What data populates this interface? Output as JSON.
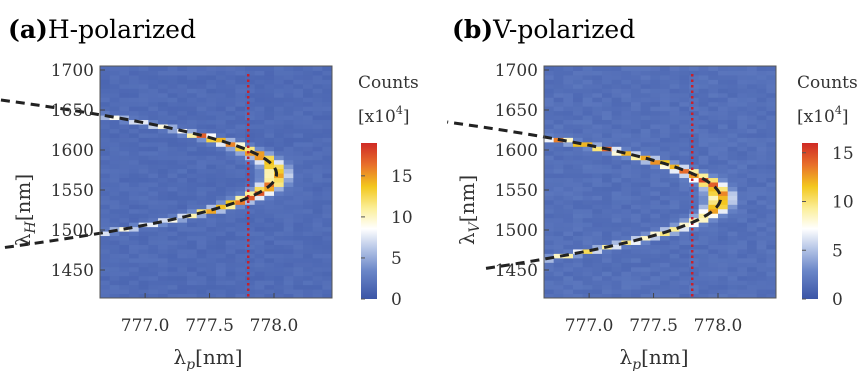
{
  "chart_data": [
    {
      "type": "heatmap",
      "panel_label": "(a)",
      "title": "H-polarized",
      "xlabel": {
        "main": "λ",
        "sub": "p",
        "unit": "[nm]"
      },
      "ylabel": {
        "main": "λ",
        "sub": "H",
        "unit": "[nm]"
      },
      "xlim": [
        776.65,
        778.45
      ],
      "ylim": [
        1415,
        1705
      ],
      "xticks": [
        "777.0",
        "777.5",
        "778.0"
      ],
      "xtick_values": [
        777.0,
        777.5,
        778.0
      ],
      "yticks": [
        "1450",
        "1500",
        "1550",
        "1600",
        "1650",
        "1700"
      ],
      "ytick_values": [
        1450,
        1500,
        1550,
        1600,
        1650,
        1700
      ],
      "colorbar": {
        "title": "Counts",
        "unit": "[x10",
        "unit_exp": "4",
        "unit_close": "]",
        "ticks": [
          "0",
          "5",
          "10",
          "15"
        ],
        "tick_values": [
          0,
          5,
          10,
          15
        ],
        "range": [
          0,
          19
        ]
      },
      "vertical_line_x": 777.8,
      "fit_curve": {
        "vertex_x": 778.02,
        "vertex_y": 1570,
        "curvature": 0.00025,
        "y_range": [
          1462,
          1667
        ]
      },
      "ridge": {
        "peak": 18,
        "bright_band": [
          1520,
          1620
        ]
      },
      "grid": false
    },
    {
      "type": "heatmap",
      "panel_label": "(b)",
      "title": "V-polarized",
      "xlabel": {
        "main": "λ",
        "sub": "p",
        "unit": "[nm]"
      },
      "ylabel": {
        "main": "λ",
        "sub": "V",
        "unit": "[nm]"
      },
      "xlim": [
        776.65,
        778.45
      ],
      "ylim": [
        1415,
        1705
      ],
      "xticks": [
        "777.0",
        "777.5",
        "778.0"
      ],
      "xtick_values": [
        777.0,
        777.5,
        778.0
      ],
      "yticks": [
        "1450",
        "1500",
        "1550",
        "1600",
        "1650",
        "1700"
      ],
      "ytick_values": [
        1450,
        1500,
        1550,
        1600,
        1650,
        1700
      ],
      "colorbar": {
        "title": "Counts",
        "unit": "[x10",
        "unit_exp": "4",
        "unit_close": "]",
        "ticks": [
          "0",
          "5",
          "10",
          "15"
        ],
        "tick_values": [
          0,
          5,
          10,
          15
        ],
        "range": [
          0,
          16
        ]
      },
      "vertical_line_x": 777.8,
      "fit_curve": {
        "vertex_x": 778.02,
        "vertex_y": 1540,
        "curvature": 0.000235,
        "y_range": [
          1452,
          1635
        ]
      },
      "ridge": {
        "peak": 15.5,
        "bright_band": [
          1520,
          1615
        ]
      },
      "grid": false
    }
  ]
}
